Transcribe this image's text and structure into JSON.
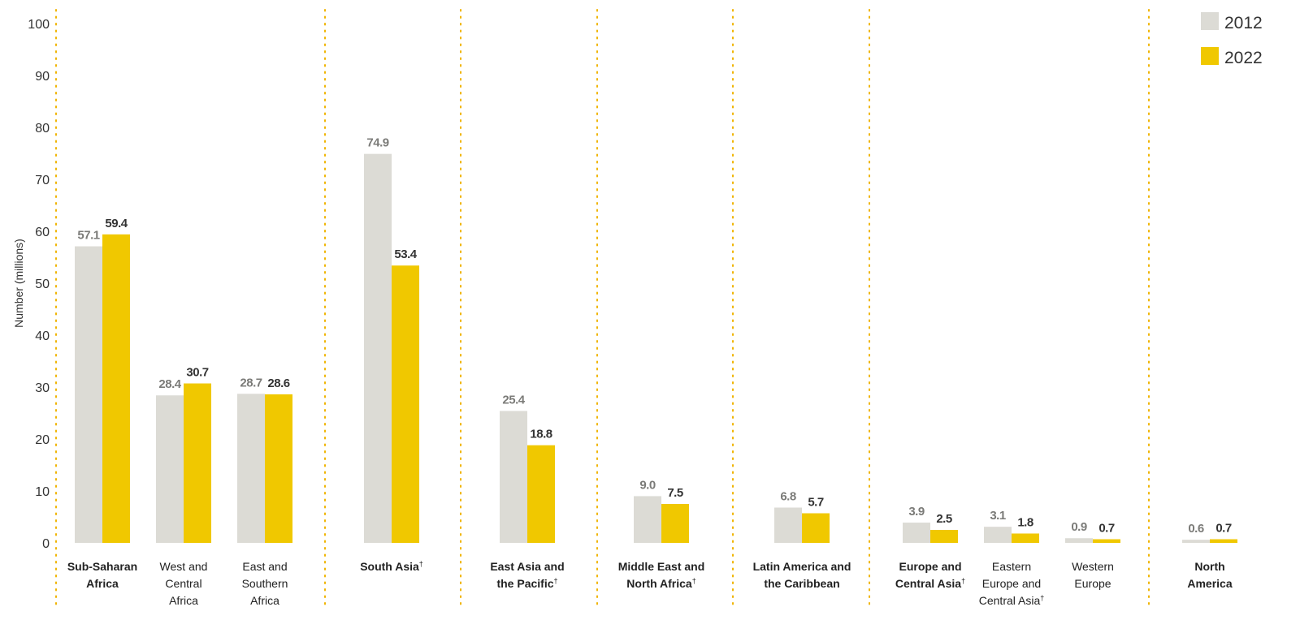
{
  "chart_data": {
    "type": "bar",
    "ylabel": "Number (millions)",
    "ylim": [
      0,
      100
    ],
    "yticks": [
      0,
      10,
      20,
      30,
      40,
      50,
      60,
      70,
      80,
      90,
      100
    ],
    "grid": false,
    "legend_position": "top-right",
    "colors": {
      "2012": "#dcdbd5",
      "2022": "#f0c800",
      "separator": "#f0b400"
    },
    "series": [
      {
        "name": "2012",
        "values": [
          57.1,
          28.4,
          28.7,
          74.9,
          25.4,
          9.0,
          6.8,
          3.9,
          3.1,
          0.9,
          0.6
        ]
      },
      {
        "name": "2022",
        "values": [
          59.4,
          30.7,
          28.6,
          53.4,
          18.8,
          7.5,
          5.7,
          2.5,
          1.8,
          0.7,
          0.7
        ]
      }
    ],
    "value_labels": {
      "2012": [
        "57.1",
        "28.4",
        "28.7",
        "74.9",
        "25.4",
        "9.0",
        "6.8",
        "3.9",
        "3.1",
        "0.9",
        "0.6"
      ],
      "2022": [
        "59.4",
        "30.7",
        "28.6",
        "53.4",
        "18.8",
        "7.5",
        "5.7",
        "2.5",
        "1.8",
        "0.7",
        "0.7"
      ]
    },
    "categories": [
      {
        "label": [
          "Sub-Saharan",
          "Africa"
        ],
        "bold": true,
        "dagger": false
      },
      {
        "label": [
          "West and",
          "Central",
          "Africa"
        ],
        "bold": false,
        "dagger": false
      },
      {
        "label": [
          "East and",
          "Southern",
          "Africa"
        ],
        "bold": false,
        "dagger": false
      },
      {
        "label": [
          "South Asia"
        ],
        "bold": true,
        "dagger": true
      },
      {
        "label": [
          "East Asia and",
          "the Pacific"
        ],
        "bold": true,
        "dagger": true
      },
      {
        "label": [
          "Middle East and",
          "North Africa"
        ],
        "bold": true,
        "dagger": true
      },
      {
        "label": [
          "Latin America and",
          "the Caribbean"
        ],
        "bold": true,
        "dagger": false
      },
      {
        "label": [
          "Europe and",
          "Central Asia"
        ],
        "bold": true,
        "dagger": true
      },
      {
        "label": [
          "Eastern",
          "Europe and",
          "Central Asia"
        ],
        "bold": false,
        "dagger": true
      },
      {
        "label": [
          "Western",
          "Europe"
        ],
        "bold": false,
        "dagger": false
      },
      {
        "label": [
          "North",
          "America"
        ],
        "bold": true,
        "dagger": false
      }
    ],
    "dagger_symbol": "†"
  }
}
